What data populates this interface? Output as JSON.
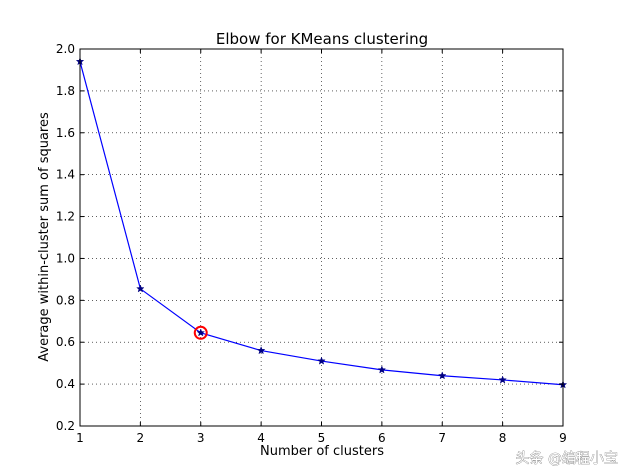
{
  "chart_data": {
    "type": "line",
    "title": "Elbow for KMeans clustering",
    "xlabel": "Number of clusters",
    "ylabel": "Average within-cluster sum of squares",
    "x": [
      1,
      2,
      3,
      4,
      5,
      6,
      7,
      8,
      9
    ],
    "xlim": [
      1,
      9
    ],
    "xticks": [
      "1",
      "2",
      "3",
      "4",
      "5",
      "6",
      "7",
      "8",
      "9"
    ],
    "ylim": [
      0.2,
      2.0
    ],
    "yticks": [
      "0.2",
      "0.4",
      "0.6",
      "0.8",
      "1.0",
      "1.2",
      "1.4",
      "1.6",
      "1.8",
      "2.0"
    ],
    "grid": true,
    "series": [
      {
        "values": [
          1.94,
          0.855,
          0.645,
          0.56,
          0.51,
          0.468,
          0.44,
          0.42,
          0.397
        ],
        "color": "#0000ff",
        "marker": "star"
      }
    ],
    "highlight": {
      "x": 3,
      "y": 0.645,
      "color": "#ff0000"
    }
  },
  "watermark": "头条 @编程小宝"
}
